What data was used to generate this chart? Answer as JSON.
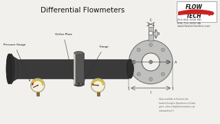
{
  "title": "Differential Flowmeters",
  "title_fontsize": 7.5,
  "bg_color": "#f2f0ed",
  "logo_flow": "FLOW",
  "logo_tech": "TECH",
  "logo_red": "#cc2222",
  "contact_lines": [
    "410-666-3200 MD",
    "804-752-3450 VA",
    "www.flowtechonline.com"
  ],
  "label_orifice": "Orifice Plate",
  "label_pressure": "Pressure Gauge",
  "label_flange": "Flange",
  "footnote": "Video available at flowtech.info\nfunded through a Department of Labor\ngrant, online info@flowtechonline.org/\nsubaward/unit 5",
  "pipe_dark": "#2a2a2a",
  "pipe_mid": "#3d3d3d",
  "pipe_light": "#555555",
  "flange_color": "#5a5a5a",
  "gauge_bg": "#f5efe0",
  "gauge_border": "#888855",
  "gauge_yellow": "#d4b830",
  "gauge_red": "#cc3322",
  "ring_gray": "#b8b8b8",
  "ring_edge": "#666666"
}
